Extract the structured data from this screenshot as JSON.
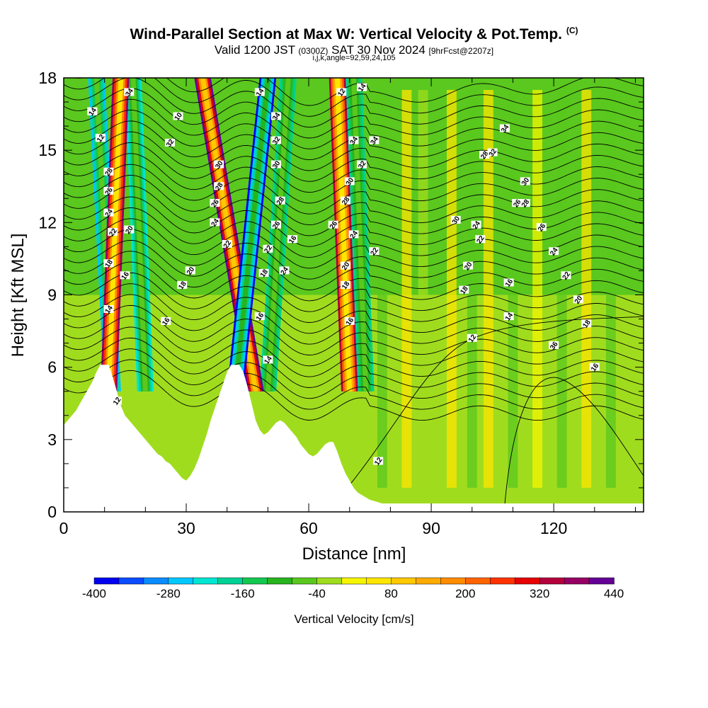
{
  "header": {
    "title": "Wind-Parallel Section at Max W: Vertical Velocity & Pot.Temp.",
    "copyright": "(C)",
    "valid_main": "Valid 1200 JST",
    "valid_utc": "(0300Z)",
    "valid_date": "SAT 30 Nov 2024",
    "valid_fcst": "[9hrFcst@2207z]",
    "subtitle": "i,j,k,angle=92,59,24,105"
  },
  "chart_data": {
    "type": "heatmap",
    "title": "Wind-Parallel Section at Max W: Vertical Velocity & Pot.Temp.",
    "xlabel": "Distance [nm]",
    "ylabel": "Height [Kft MSL]",
    "xlim": [
      0,
      142
    ],
    "ylim": [
      0,
      18
    ],
    "x_ticks": [
      0,
      30,
      60,
      90,
      120
    ],
    "y_ticks": [
      0,
      3,
      6,
      9,
      12,
      15,
      18
    ],
    "grid": false,
    "colorbar": {
      "label": "Vertical Velocity [cm/s]",
      "tick_labels": [
        "-400",
        "-280",
        "-160",
        "-40",
        "80",
        "200",
        "320",
        "440"
      ],
      "levels": [
        -400,
        -360,
        -320,
        -280,
        -240,
        -200,
        -160,
        -120,
        -80,
        -40,
        0,
        40,
        80,
        120,
        160,
        200,
        240,
        280,
        320,
        360,
        400,
        440
      ],
      "colors": [
        "#0000f0",
        "#0a4cff",
        "#0a8cff",
        "#00c8ff",
        "#00e6d2",
        "#00d296",
        "#14c850",
        "#28b41e",
        "#5ac81e",
        "#a0dc1e",
        "#f5f500",
        "#ffe600",
        "#ffc800",
        "#ffaa00",
        "#ff8c00",
        "#ff6400",
        "#ff3200",
        "#e60000",
        "#b4003c",
        "#960064",
        "#640096"
      ]
    },
    "terrain_profile": {
      "x": [
        0,
        1,
        2,
        3,
        4,
        5,
        6,
        7,
        8,
        9,
        10,
        11,
        12,
        13,
        14,
        15,
        16,
        17,
        18,
        19,
        20,
        21,
        22,
        23,
        24,
        25,
        26,
        27,
        28,
        29,
        30,
        31,
        32,
        33,
        34,
        35,
        36,
        37,
        38,
        39,
        40,
        41,
        42,
        43,
        44,
        45,
        46,
        47,
        48,
        49,
        50,
        51,
        52,
        53,
        54,
        55,
        56,
        57,
        58,
        59,
        60,
        61,
        62,
        63,
        64,
        65,
        66,
        67,
        68,
        69,
        70,
        71,
        72,
        73,
        74,
        75,
        76,
        77,
        78,
        79,
        80,
        142
      ],
      "y": [
        3.6,
        3.8,
        4.0,
        4.2,
        4.5,
        4.8,
        5.1,
        5.4,
        5.8,
        6.1,
        6.1,
        6.1,
        5.6,
        5.0,
        4.4,
        4.0,
        3.8,
        3.6,
        3.4,
        3.2,
        3.0,
        2.8,
        2.6,
        2.4,
        2.3,
        2.1,
        2.0,
        1.8,
        1.6,
        1.4,
        1.3,
        1.5,
        1.8,
        2.2,
        2.7,
        3.2,
        3.8,
        4.3,
        4.8,
        5.3,
        5.8,
        6.1,
        6.1,
        6.1,
        5.8,
        5.2,
        4.5,
        3.8,
        3.4,
        3.2,
        3.3,
        3.5,
        3.7,
        3.8,
        3.7,
        3.5,
        3.3,
        3.1,
        2.8,
        2.6,
        2.4,
        2.3,
        2.4,
        2.6,
        2.8,
        2.9,
        2.9,
        2.5,
        2.0,
        1.6,
        1.3,
        1.0,
        0.8,
        0.7,
        0.6,
        0.5,
        0.45,
        0.4,
        0.35,
        0.35,
        0.35,
        0.35
      ]
    },
    "updraft_bands": [
      {
        "x_top": 14,
        "x_bottom": 11,
        "peak": 360
      },
      {
        "x_top": 34,
        "x_bottom": 47,
        "peak": 400
      },
      {
        "x_top": 50,
        "x_bottom": 42,
        "peak": -400
      },
      {
        "x_top": 67,
        "x_bottom": 70,
        "peak": 320
      }
    ],
    "downdraft_bands": [
      {
        "x_top": 8,
        "x_bottom": 12,
        "peak": -280
      },
      {
        "x_top": 17,
        "x_bottom": 20,
        "peak": -240
      },
      {
        "x_top": 55,
        "x_bottom": 50,
        "peak": -200
      },
      {
        "x_top": 71,
        "x_bottom": 74,
        "peak": -200
      }
    ],
    "contour_field": "Potential temperature (contours)",
    "contour_labels": [
      "32",
      "30",
      "28",
      "26",
      "24",
      "22",
      "18",
      "14",
      "34",
      "20",
      "16",
      "12",
      "10",
      "32",
      "30",
      "28",
      "26",
      "24",
      "22",
      "20",
      "18",
      "16",
      "14",
      "34",
      "32",
      "30",
      "28",
      "26",
      "22",
      "18",
      "16",
      "24",
      "16",
      "14",
      "12",
      "34",
      "32",
      "30",
      "28",
      "26",
      "24",
      "22",
      "20",
      "18",
      "16",
      "14",
      "34",
      "30",
      "28",
      "26",
      "24",
      "22",
      "20",
      "18",
      "16",
      "14",
      "12",
      "12",
      "36",
      "34",
      "32",
      "30",
      "28",
      "26",
      "24",
      "22",
      "20",
      "18",
      "16",
      "14",
      "12"
    ]
  }
}
